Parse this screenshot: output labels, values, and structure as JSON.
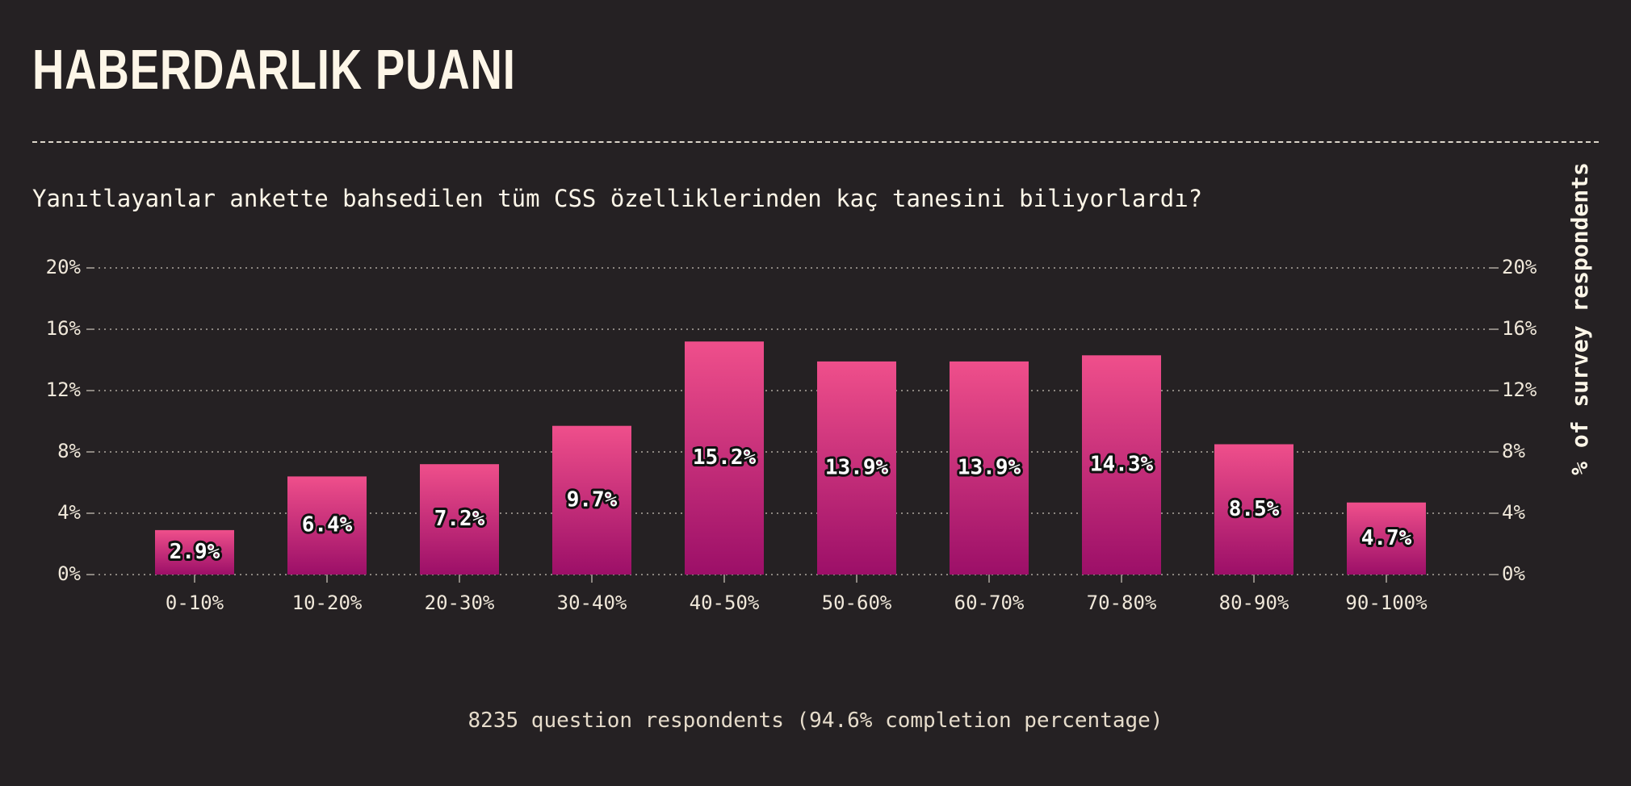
{
  "page": {
    "title": "HABERDARLIK PUANI",
    "question": "Yanıtlayanlar ankette bahsedilen tüm CSS özelliklerinden kaç tanesini biliyorlardı?",
    "footer": "8235 question respondents (94.6% completion percentage)"
  },
  "colors": {
    "background": "#252123",
    "bar_top": "#ef4f8b",
    "bar_bottom": "#9c0f68",
    "text": "#fdf6e8",
    "grid": "#8c8680"
  },
  "chart_data": {
    "type": "bar",
    "title": "",
    "xlabel": "",
    "ylabel": "% of survey respondents",
    "categories": [
      "0-10%",
      "10-20%",
      "20-30%",
      "30-40%",
      "40-50%",
      "50-60%",
      "60-70%",
      "70-80%",
      "80-90%",
      "90-100%"
    ],
    "values": [
      2.9,
      6.4,
      7.2,
      9.7,
      15.2,
      13.9,
      13.9,
      14.3,
      8.5,
      4.7
    ],
    "value_labels": [
      "2.9%",
      "6.4%",
      "7.2%",
      "9.7%",
      "15.2%",
      "13.9%",
      "13.9%",
      "14.3%",
      "8.5%",
      "4.7%"
    ],
    "ylim": [
      0,
      20
    ],
    "yticks": [
      0,
      4,
      8,
      12,
      16,
      20
    ],
    "ytick_labels": [
      "0%",
      "4%",
      "8%",
      "12%",
      "16%",
      "20%"
    ],
    "grid": true,
    "right_axis": true
  }
}
